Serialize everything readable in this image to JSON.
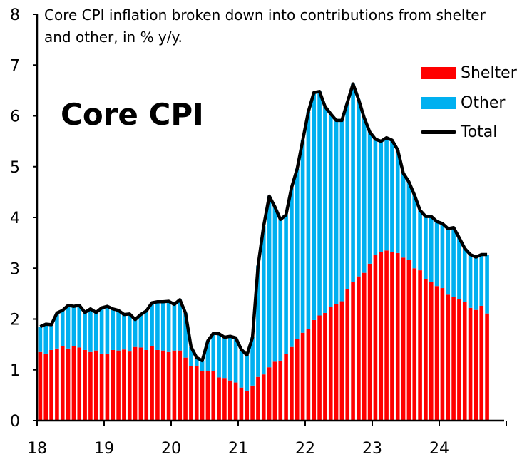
{
  "chart_data": {
    "type": "bar",
    "stacked": true,
    "title": "Core CPI inflation broken down into contributions from shelter and other, in % y/y.",
    "annotation": "Core CPI",
    "xlabel": "",
    "ylabel": "",
    "ylim": [
      0,
      8
    ],
    "yticks": [
      "0",
      "1",
      "2",
      "3",
      "4",
      "5",
      "6",
      "7",
      "8"
    ],
    "xticks": [
      "18",
      "19",
      "20",
      "21",
      "22",
      "23",
      "24"
    ],
    "grid": false,
    "legend": "top-right",
    "x": [
      "2018-01",
      "2018-02",
      "2018-03",
      "2018-04",
      "2018-05",
      "2018-06",
      "2018-07",
      "2018-08",
      "2018-09",
      "2018-10",
      "2018-11",
      "2018-12",
      "2019-01",
      "2019-02",
      "2019-03",
      "2019-04",
      "2019-05",
      "2019-06",
      "2019-07",
      "2019-08",
      "2019-09",
      "2019-10",
      "2019-11",
      "2019-12",
      "2020-01",
      "2020-02",
      "2020-03",
      "2020-04",
      "2020-05",
      "2020-06",
      "2020-07",
      "2020-08",
      "2020-09",
      "2020-10",
      "2020-11",
      "2020-12",
      "2021-01",
      "2021-02",
      "2021-03",
      "2021-04",
      "2021-05",
      "2021-06",
      "2021-07",
      "2021-08",
      "2021-09",
      "2021-10",
      "2021-11",
      "2021-12",
      "2022-01",
      "2022-02",
      "2022-03",
      "2022-04",
      "2022-05",
      "2022-06",
      "2022-07",
      "2022-08",
      "2022-09",
      "2022-10",
      "2022-11",
      "2022-12",
      "2023-01",
      "2023-02",
      "2023-03",
      "2023-04",
      "2023-05",
      "2023-06",
      "2023-07",
      "2023-08",
      "2023-09",
      "2023-10",
      "2023-11",
      "2023-12",
      "2024-01",
      "2024-02",
      "2024-03",
      "2024-04",
      "2024-05",
      "2024-06",
      "2024-07",
      "2024-08",
      "2024-09"
    ],
    "series": [
      {
        "name": "Shelter",
        "type": "bar",
        "color": "#ff0000",
        "values": [
          1.35,
          1.32,
          1.39,
          1.42,
          1.47,
          1.42,
          1.47,
          1.44,
          1.39,
          1.35,
          1.38,
          1.32,
          1.32,
          1.39,
          1.38,
          1.4,
          1.36,
          1.45,
          1.44,
          1.39,
          1.46,
          1.39,
          1.38,
          1.35,
          1.38,
          1.38,
          1.24,
          1.08,
          1.07,
          0.98,
          0.98,
          0.97,
          0.85,
          0.84,
          0.79,
          0.75,
          0.65,
          0.59,
          0.69,
          0.86,
          0.91,
          1.05,
          1.16,
          1.18,
          1.31,
          1.45,
          1.6,
          1.73,
          1.81,
          1.98,
          2.07,
          2.12,
          2.24,
          2.3,
          2.35,
          2.59,
          2.73,
          2.84,
          2.91,
          3.09,
          3.26,
          3.32,
          3.35,
          3.32,
          3.3,
          3.21,
          3.17,
          3.0,
          2.96,
          2.79,
          2.73,
          2.65,
          2.61,
          2.48,
          2.43,
          2.39,
          2.33,
          2.22,
          2.18,
          2.26,
          2.11
        ]
      },
      {
        "name": "Other",
        "type": "bar",
        "color": "#00b0f0",
        "values": [
          0.5,
          0.58,
          0.5,
          0.7,
          0.7,
          0.85,
          0.78,
          0.83,
          0.74,
          0.85,
          0.75,
          0.9,
          0.93,
          0.81,
          0.79,
          0.69,
          0.74,
          0.54,
          0.65,
          0.77,
          0.86,
          0.95,
          0.96,
          1.0,
          0.91,
          1.0,
          0.88,
          0.37,
          0.17,
          0.2,
          0.59,
          0.75,
          0.86,
          0.8,
          0.87,
          0.88,
          0.75,
          0.7,
          0.95,
          2.19,
          2.92,
          3.37,
          3.05,
          2.78,
          2.74,
          3.14,
          3.36,
          3.79,
          4.27,
          4.48,
          4.41,
          4.06,
          3.8,
          3.61,
          3.56,
          3.68,
          3.9,
          3.48,
          3.05,
          2.59,
          2.28,
          2.18,
          2.22,
          2.2,
          2.03,
          1.66,
          1.53,
          1.44,
          1.18,
          1.23,
          1.29,
          1.27,
          1.27,
          1.3,
          1.37,
          1.21,
          1.06,
          1.05,
          1.04,
          1.01,
          1.16
        ]
      },
      {
        "name": "Total",
        "type": "line",
        "color": "#000000",
        "values": [
          1.85,
          1.9,
          1.89,
          2.12,
          2.17,
          2.27,
          2.25,
          2.27,
          2.13,
          2.2,
          2.13,
          2.22,
          2.25,
          2.2,
          2.17,
          2.09,
          2.1,
          1.99,
          2.09,
          2.16,
          2.32,
          2.34,
          2.34,
          2.35,
          2.29,
          2.38,
          2.12,
          1.45,
          1.24,
          1.18,
          1.57,
          1.72,
          1.71,
          1.64,
          1.66,
          1.63,
          1.4,
          1.29,
          1.64,
          3.05,
          3.83,
          4.42,
          4.21,
          3.96,
          4.05,
          4.59,
          4.96,
          5.52,
          6.08,
          6.46,
          6.48,
          6.18,
          6.04,
          5.91,
          5.91,
          6.27,
          6.63,
          6.32,
          5.96,
          5.68,
          5.54,
          5.5,
          5.57,
          5.52,
          5.33,
          4.87,
          4.7,
          4.44,
          4.14,
          4.02,
          4.02,
          3.92,
          3.88,
          3.78,
          3.8,
          3.6,
          3.39,
          3.27,
          3.22,
          3.27,
          3.27
        ]
      }
    ]
  }
}
